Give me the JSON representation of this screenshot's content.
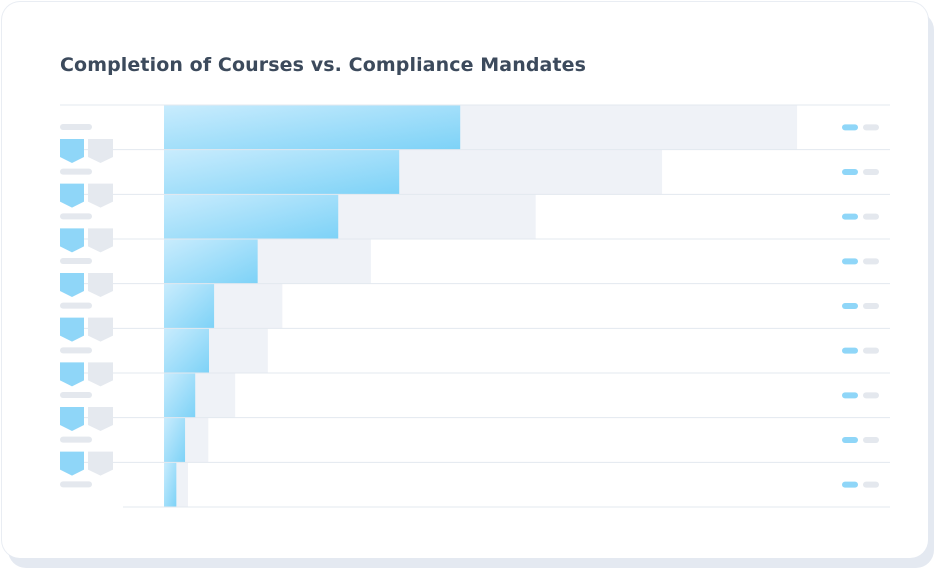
{
  "chart_data": {
    "type": "bar",
    "orientation": "horizontal",
    "title": "Completion of Courses vs. Compliance Mandates",
    "categories": [
      null,
      null,
      null,
      null,
      null,
      null,
      null,
      null,
      null
    ],
    "xlim": [
      0,
      100
    ],
    "series": [
      {
        "color": "#eff2f7",
        "values": [
          87.2,
          68.6,
          51.2,
          28.5,
          16.3,
          14.3,
          9.8,
          6.1,
          3.3
        ]
      },
      {
        "color": "#7fd2f7",
        "values": [
          40.8,
          32.4,
          24.0,
          12.9,
          6.9,
          6.2,
          4.3,
          2.9,
          1.7
        ]
      }
    ]
  }
}
